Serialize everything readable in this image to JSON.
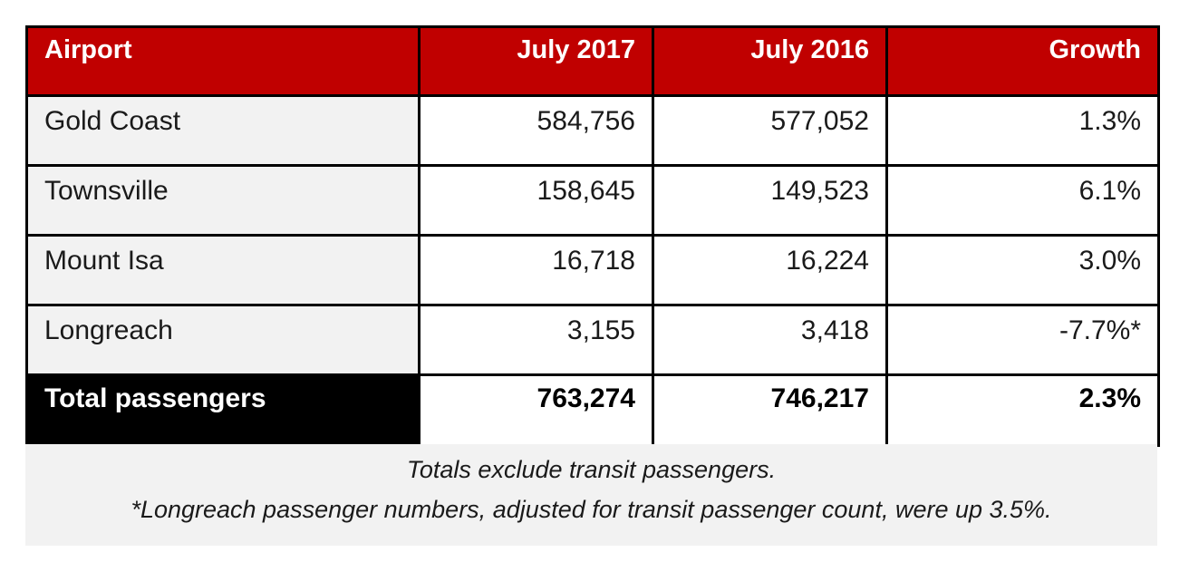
{
  "chart_data": {
    "type": "table",
    "columns": [
      "Airport",
      "July 2017",
      "July 2016",
      "Growth"
    ],
    "rows": [
      [
        "Gold Coast",
        "584,756",
        "577,052",
        "1.3%"
      ],
      [
        "Townsville",
        "158,645",
        "149,523",
        "6.1%"
      ],
      [
        "Mount Isa",
        "16,718",
        "16,224",
        "3.0%"
      ],
      [
        "Longreach",
        "3,155",
        "3,418",
        "-7.7%*"
      ]
    ],
    "total": [
      "Total passengers",
      "763,274",
      "746,217",
      "2.3%"
    ],
    "notes": [
      "Totals exclude transit passengers.",
      "*Longreach passenger numbers, adjusted for transit passenger count, were up 3.5%."
    ]
  },
  "colors": {
    "header_bg": "#c00000",
    "header_text": "#ffffff",
    "total_label_bg": "#000000",
    "name_cell_bg": "#f2f2f2",
    "notes_bg": "#f2f2f2"
  }
}
